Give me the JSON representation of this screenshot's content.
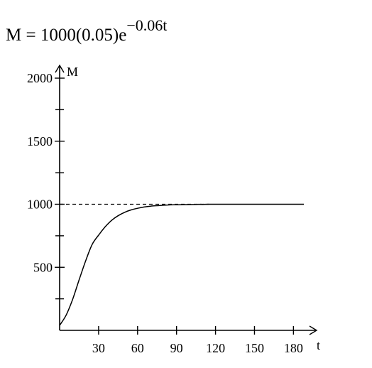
{
  "formula": {
    "base": "M = 1000(0.05)e",
    "exponent": "−0.06t"
  },
  "chart_data": {
    "type": "line",
    "title": "",
    "xlabel": "t",
    "ylabel": "M",
    "xlim": [
      0,
      188
    ],
    "ylim": [
      0,
      2000
    ],
    "xticks": [
      30,
      60,
      90,
      120,
      150,
      180
    ],
    "xtick_labels": [
      "30",
      "60",
      "90",
      "120",
      "150",
      "180"
    ],
    "xminor_ticks": [],
    "yticks": [
      500,
      1000,
      1500,
      2000
    ],
    "ytick_labels": [
      "500",
      "1000",
      "1500",
      "2000"
    ],
    "yminor_ticks": [
      250,
      750,
      1250,
      1750
    ],
    "grid": false,
    "legend": "none",
    "reference_line": {
      "y": 1000,
      "style": "dashed"
    },
    "series": [
      {
        "x": [
          0,
          5,
          10,
          15,
          20,
          25,
          30,
          35,
          40,
          45,
          50,
          55,
          60,
          65,
          70,
          75,
          80,
          85,
          90,
          95,
          100,
          105,
          110,
          115,
          120,
          130,
          140,
          150,
          160,
          170,
          180,
          188
        ],
        "y": [
          40,
          120,
          245,
          400,
          550,
          680,
          755,
          820,
          872,
          909,
          936,
          955,
          968,
          978,
          985,
          989,
          992,
          995,
          996,
          997,
          998,
          999,
          999,
          1000,
          1000,
          1000,
          1000,
          1000,
          1000,
          1000,
          1000,
          1000
        ]
      }
    ]
  }
}
